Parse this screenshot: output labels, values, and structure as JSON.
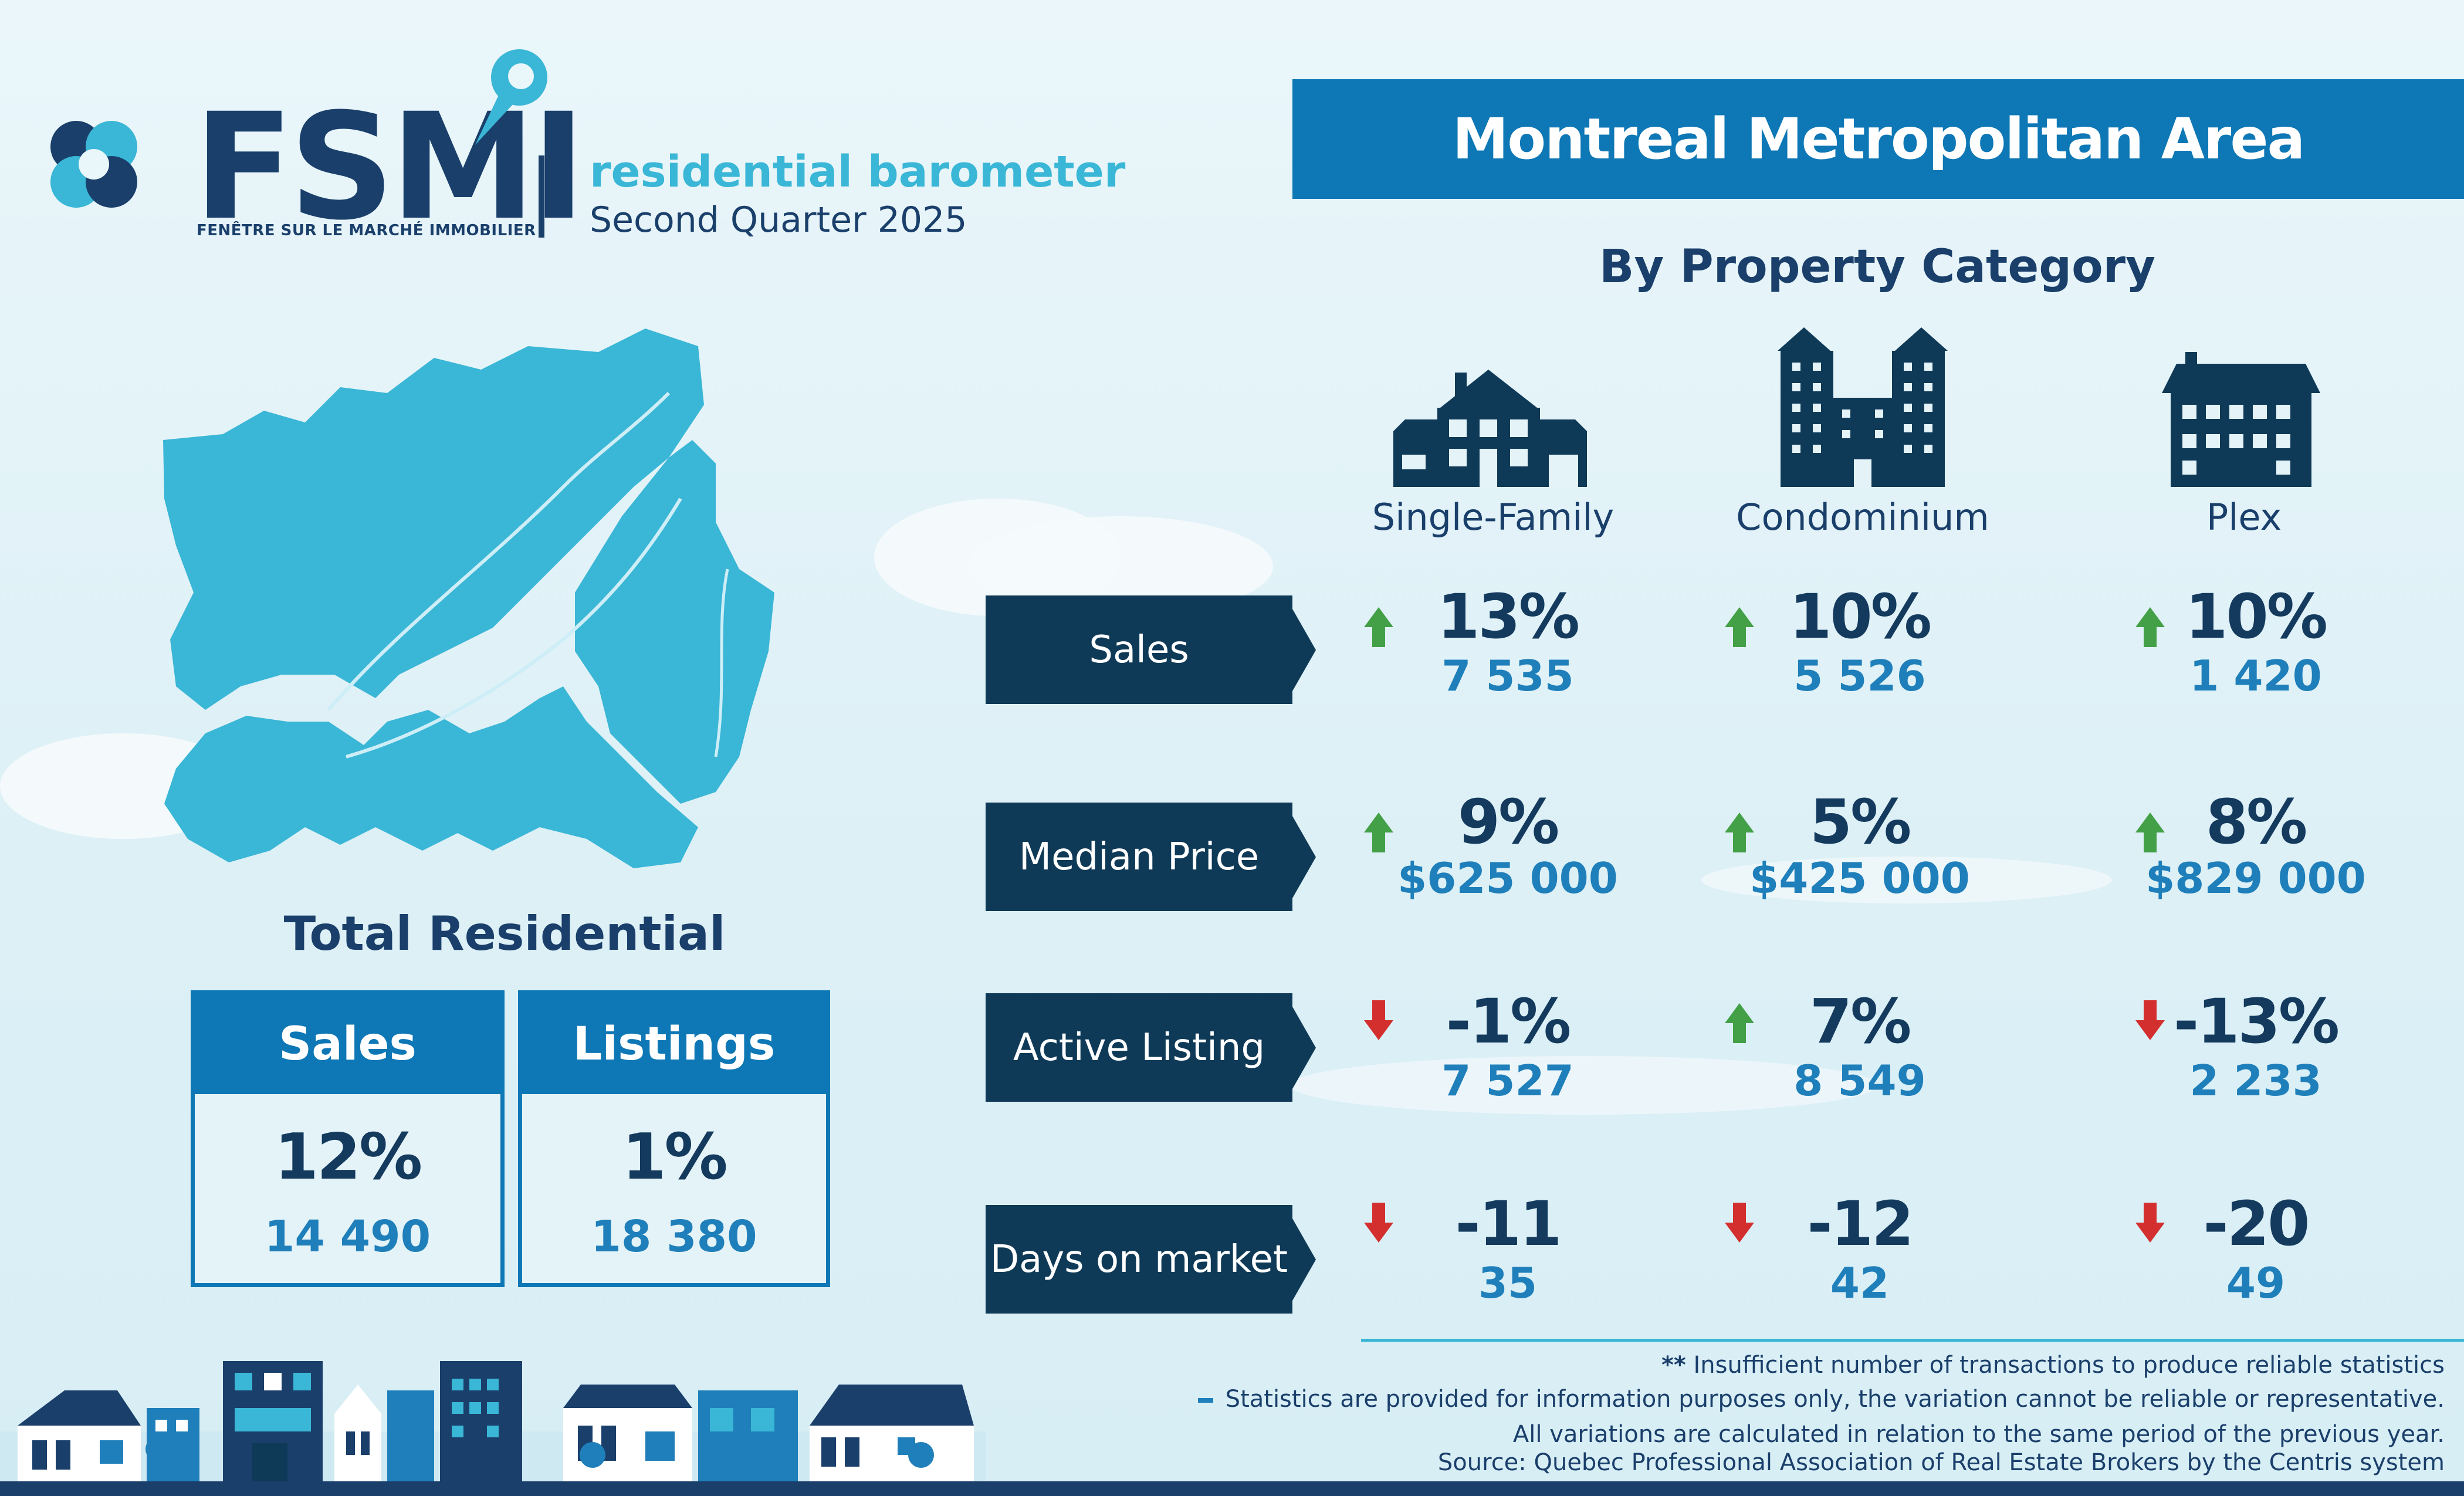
{
  "brand": {
    "logo": "FSMI",
    "logo_sub": "FENÊTRE SUR LE MARCHÉ IMMOBILIER",
    "subtitle": "residential barometer",
    "period": "Second Quarter 2025"
  },
  "region": "Montreal Metropolitan Area",
  "category_title": "By Property Category",
  "categories": [
    "Single-Family",
    "Condominium",
    "Plex"
  ],
  "rows": [
    {
      "label": "Sales",
      "cells": [
        {
          "pct": "13%",
          "value": "7 535",
          "dir": "up"
        },
        {
          "pct": "10%",
          "value": "5 526",
          "dir": "up"
        },
        {
          "pct": "10%",
          "value": "1 420",
          "dir": "up"
        }
      ]
    },
    {
      "label": "Median Price",
      "cells": [
        {
          "pct": "9%",
          "value": "$625 000",
          "dir": "up"
        },
        {
          "pct": "5%",
          "value": "$425 000",
          "dir": "up"
        },
        {
          "pct": "8%",
          "value": "$829 000",
          "dir": "up"
        }
      ]
    },
    {
      "label": "Active Listing",
      "cells": [
        {
          "pct": "-1%",
          "value": "7 527",
          "dir": "down"
        },
        {
          "pct": "7%",
          "value": "8 549",
          "dir": "up"
        },
        {
          "pct": "-13%",
          "value": "2 233",
          "dir": "down"
        }
      ]
    },
    {
      "label": "Days on market",
      "cells": [
        {
          "pct": "-11",
          "value": "35",
          "dir": "down"
        },
        {
          "pct": "-12",
          "value": "42",
          "dir": "down"
        },
        {
          "pct": "-20",
          "value": "49",
          "dir": "down"
        }
      ]
    }
  ],
  "total": {
    "title": "Total Residential",
    "sales": {
      "label": "Sales",
      "pct": "12%",
      "value": "14 490"
    },
    "listings": {
      "label": "Listings",
      "pct": "1%",
      "value": "18 380"
    }
  },
  "footnotes": {
    "insufficient": "Insufficient number of transactions to produce reliable statistics",
    "insufficient_mark": "**",
    "info": "Statistics are provided for information purposes only, the variation cannot be reliable or representative.",
    "variations": "All variations are calculated in relation to the same period of the previous year.",
    "source": "Source:  Quebec Professional Association of Real Estate Brokers by the Centris system"
  },
  "colors": {
    "up": "#43a047",
    "down": "#d32f2f",
    "primary": "#0e77b5",
    "navy": "#1a3f6b",
    "accent": "#3ab6d6"
  }
}
